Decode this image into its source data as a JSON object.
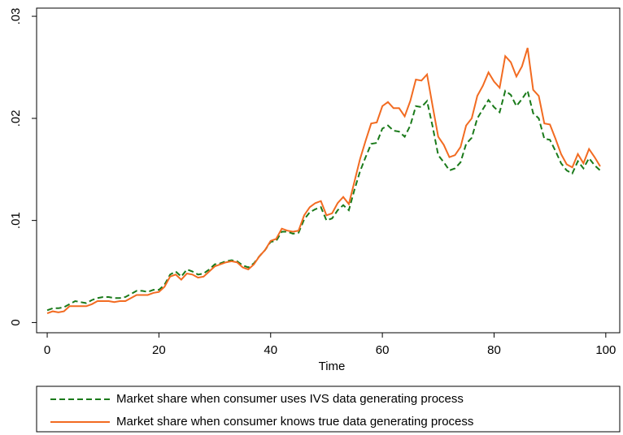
{
  "chart_data": {
    "type": "line",
    "x_label": "Time",
    "x": [
      0,
      1,
      2,
      3,
      4,
      5,
      6,
      7,
      8,
      9,
      10,
      11,
      12,
      13,
      14,
      15,
      16,
      17,
      18,
      19,
      20,
      21,
      22,
      23,
      24,
      25,
      26,
      27,
      28,
      29,
      30,
      31,
      32,
      33,
      34,
      35,
      36,
      37,
      38,
      39,
      40,
      41,
      42,
      43,
      44,
      45,
      46,
      47,
      48,
      49,
      50,
      51,
      52,
      53,
      54,
      55,
      56,
      57,
      58,
      59,
      60,
      61,
      62,
      63,
      64,
      65,
      66,
      67,
      68,
      69,
      70,
      71,
      72,
      73,
      74,
      75,
      76,
      77,
      78,
      79,
      80,
      81,
      82,
      83,
      84,
      85,
      86,
      87,
      88,
      89,
      90,
      91,
      92,
      93,
      94,
      95,
      96,
      97,
      98,
      99
    ],
    "series": [
      {
        "name": "Market share when consumer uses IVS data generating process",
        "color": "#1a7a1a",
        "dashed": true,
        "values": [
          0.0012,
          0.0014,
          0.0014,
          0.0015,
          0.0018,
          0.0021,
          0.002,
          0.0019,
          0.0022,
          0.0024,
          0.0025,
          0.0025,
          0.0024,
          0.0024,
          0.0025,
          0.0028,
          0.0031,
          0.0031,
          0.003,
          0.0032,
          0.0032,
          0.0037,
          0.0047,
          0.005,
          0.0045,
          0.0052,
          0.005,
          0.0047,
          0.0048,
          0.0052,
          0.0057,
          0.0058,
          0.006,
          0.0061,
          0.006,
          0.0056,
          0.0054,
          0.0058,
          0.0065,
          0.0071,
          0.0079,
          0.008,
          0.0089,
          0.0089,
          0.0087,
          0.0088,
          0.0101,
          0.0108,
          0.0111,
          0.0113,
          0.01,
          0.0102,
          0.011,
          0.0115,
          0.011,
          0.013,
          0.0148,
          0.0162,
          0.0175,
          0.0176,
          0.019,
          0.0193,
          0.0188,
          0.0187,
          0.0182,
          0.0193,
          0.0212,
          0.0211,
          0.0217,
          0.0192,
          0.0164,
          0.0157,
          0.0149,
          0.0151,
          0.0157,
          0.0175,
          0.0181,
          0.02,
          0.0209,
          0.0218,
          0.0211,
          0.0206,
          0.0227,
          0.0223,
          0.0212,
          0.0219,
          0.0227,
          0.0205,
          0.02,
          0.018,
          0.0179,
          0.0168,
          0.0156,
          0.0149,
          0.0146,
          0.0158,
          0.0151,
          0.0161,
          0.0154,
          0.0149
        ]
      },
      {
        "name": "Market share when consumer knows true data generating process",
        "color": "#f26b21",
        "dashed": false,
        "values": [
          0.0009,
          0.0011,
          0.001,
          0.0011,
          0.0016,
          0.0016,
          0.0016,
          0.0016,
          0.0018,
          0.0021,
          0.0021,
          0.0021,
          0.002,
          0.0021,
          0.0021,
          0.0024,
          0.0027,
          0.0027,
          0.0027,
          0.0029,
          0.003,
          0.0035,
          0.0045,
          0.0047,
          0.0042,
          0.0048,
          0.0047,
          0.0044,
          0.0045,
          0.005,
          0.0055,
          0.0057,
          0.0059,
          0.006,
          0.0059,
          0.0054,
          0.0052,
          0.0057,
          0.0065,
          0.0071,
          0.008,
          0.0082,
          0.0092,
          0.009,
          0.0089,
          0.009,
          0.0105,
          0.0113,
          0.0117,
          0.0119,
          0.0105,
          0.0107,
          0.0117,
          0.0123,
          0.0116,
          0.0138,
          0.016,
          0.0178,
          0.0195,
          0.0196,
          0.0212,
          0.0216,
          0.021,
          0.021,
          0.0202,
          0.0217,
          0.0238,
          0.0237,
          0.0243,
          0.0212,
          0.0182,
          0.0174,
          0.0162,
          0.0164,
          0.0172,
          0.0193,
          0.02,
          0.0222,
          0.0232,
          0.0245,
          0.0236,
          0.023,
          0.0261,
          0.0255,
          0.0241,
          0.0251,
          0.0269,
          0.0228,
          0.0222,
          0.0195,
          0.0194,
          0.018,
          0.0165,
          0.0155,
          0.0152,
          0.0165,
          0.0156,
          0.017,
          0.0162,
          0.0153
        ]
      }
    ],
    "xlim": [
      -1.9,
      102.5
    ],
    "xticks": [
      0,
      20,
      40,
      60,
      80,
      100
    ],
    "ylim": [
      -0.001,
      0.0308
    ],
    "yticks": [
      0,
      {
        "value": 0.01,
        "label": ".01"
      },
      {
        "value": 0.02,
        "label": ".02"
      },
      {
        "value": 0.03,
        "label": ".03"
      }
    ],
    "grid": false
  }
}
